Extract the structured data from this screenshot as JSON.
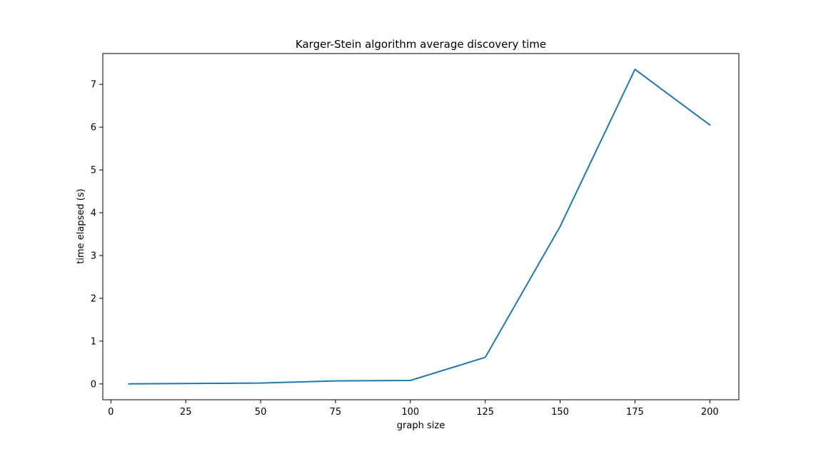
{
  "chart_data": {
    "type": "line",
    "title": "Karger-Stein algorithm average discovery time",
    "xlabel": "graph size",
    "ylabel": "time elapsed (s)",
    "xlim": [
      -2.7,
      209.7
    ],
    "ylim": [
      -0.37,
      7.72
    ],
    "xticks": [
      0,
      25,
      50,
      75,
      100,
      125,
      150,
      175,
      200
    ],
    "yticks": [
      0,
      1,
      2,
      3,
      4,
      5,
      6,
      7
    ],
    "grid": false,
    "series": [
      {
        "color": "#1f77b4",
        "x": [
          6,
          25,
          50,
          75,
          100,
          125,
          150,
          175,
          200
        ],
        "y": [
          0.0,
          0.01,
          0.02,
          0.07,
          0.08,
          0.62,
          3.68,
          7.35,
          6.05
        ]
      }
    ]
  }
}
